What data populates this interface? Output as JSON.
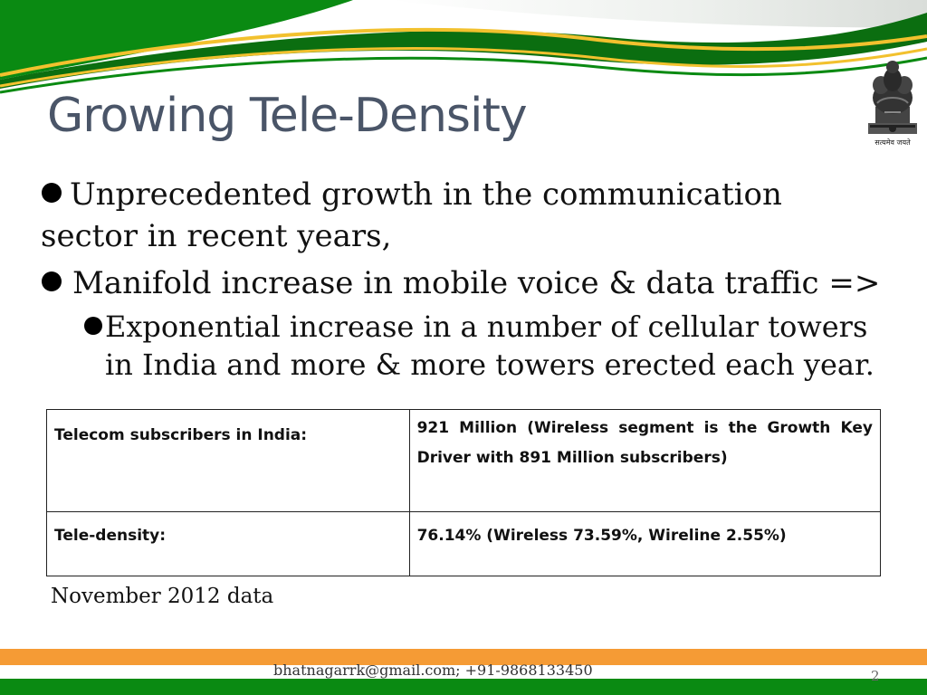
{
  "slide": {
    "title": "Growing Tele-Density",
    "bullets": [
      "Unprecedented growth in the communication sector in recent years,",
      "Manifold increase in mobile voice & data traffic =>"
    ],
    "sub_bullets": [
      "Exponential increase in a number of cellular towers in India and more & more towers erected each year."
    ],
    "table": {
      "rows": [
        {
          "label": "Telecom subscribers in India:",
          "value": "921 Million (Wireless segment is the Growth Key Driver with 891 Million subscribers)"
        },
        {
          "label": "Tele-density:",
          "value": "76.14% (Wireless 73.59%, Wireline 2.55%)"
        }
      ]
    },
    "note": "November 2012 data"
  },
  "emblem": {
    "icon": "national-emblem-icon",
    "motto": "सत्यमेव जयते"
  },
  "footer": {
    "contact": "bhatnagarrk@gmail.com; +91-9868133450",
    "page_number": "2"
  },
  "colors": {
    "green": "#0a8a12",
    "dark_green": "#0b6e10",
    "yellow": "#f2c12e",
    "orange": "#f59b35",
    "title": "#4a5568"
  }
}
